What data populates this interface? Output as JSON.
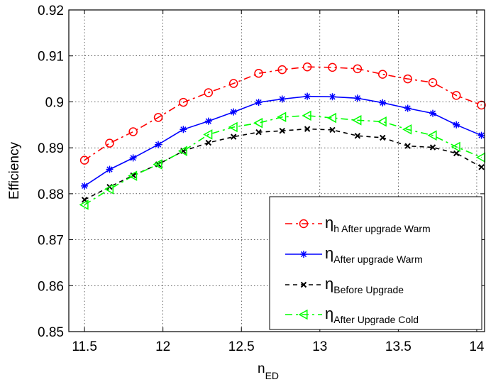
{
  "chart_data": {
    "type": "line",
    "xlabel": "n",
    "xlabel_sub": "ED",
    "ylabel": "Efficiency",
    "xlim": [
      11.4,
      14.05
    ],
    "ylim": [
      0.85,
      0.92
    ],
    "xticks": [
      "11.5",
      "12",
      "12.5",
      "13",
      "13.5",
      "14"
    ],
    "xtick_values": [
      11.5,
      12,
      12.5,
      13,
      13.5,
      14
    ],
    "yticks": [
      "0.85",
      "0.86",
      "0.87",
      "0.88",
      "0.89",
      "0.9",
      "0.91",
      "0.92"
    ],
    "ytick_values": [
      0.85,
      0.86,
      0.87,
      0.88,
      0.89,
      0.9,
      0.91,
      0.92
    ],
    "grid": true,
    "legend_position": "bottom-right",
    "x": [
      11.5,
      11.66,
      11.81,
      11.97,
      12.13,
      12.29,
      12.45,
      12.61,
      12.76,
      12.92,
      13.08,
      13.24,
      13.4,
      13.56,
      13.72,
      13.87,
      14.03
    ],
    "series": [
      {
        "name": "η",
        "name_sub": "h After upgrade Warm",
        "color": "#ff0000",
        "dash": "10,5,3,5",
        "marker": "circle",
        "values": [
          0.8873,
          0.891,
          0.8935,
          0.8966,
          0.8999,
          0.902,
          0.904,
          0.9062,
          0.907,
          0.9076,
          0.9075,
          0.9072,
          0.906,
          0.905,
          0.9042,
          0.9014,
          0.8993
        ]
      },
      {
        "name": "η",
        "name_sub": "After upgrade Warm",
        "color": "#0000ff",
        "dash": "",
        "marker": "asterisk",
        "values": [
          0.8817,
          0.8853,
          0.8878,
          0.8907,
          0.894,
          0.8958,
          0.8978,
          0.8999,
          0.9006,
          0.9012,
          0.9011,
          0.9008,
          0.8998,
          0.8986,
          0.8975,
          0.895,
          0.8927
        ]
      },
      {
        "name": "η",
        "name_sub": "Before Upgrade",
        "color": "#000000",
        "dash": "6,5",
        "marker": "x",
        "values": [
          0.8787,
          0.8815,
          0.884,
          0.8864,
          0.8893,
          0.8911,
          0.8924,
          0.8934,
          0.8937,
          0.8941,
          0.8939,
          0.8926,
          0.8922,
          0.8904,
          0.8901,
          0.8888,
          0.8858
        ]
      },
      {
        "name": "η",
        "name_sub": "After Upgrade Cold",
        "color": "#00ff00",
        "dash": "10,5,3,5",
        "marker": "triangle-left",
        "values": [
          0.8776,
          0.881,
          0.8839,
          0.8864,
          0.8893,
          0.8929,
          0.8945,
          0.8954,
          0.8967,
          0.897,
          0.8965,
          0.896,
          0.8957,
          0.894,
          0.8927,
          0.8902,
          0.8879
        ]
      }
    ]
  }
}
